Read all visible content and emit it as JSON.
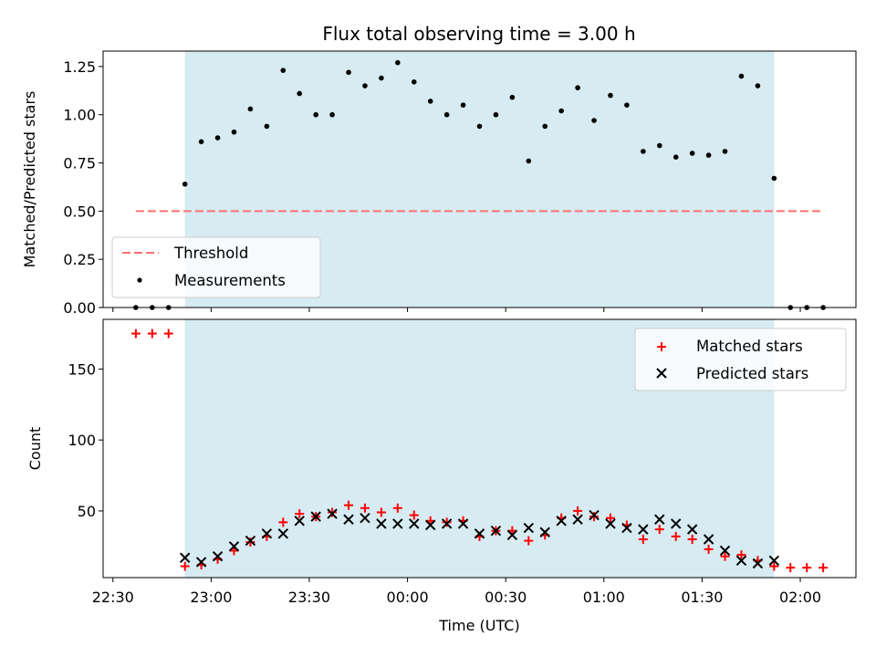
{
  "chart_data": [
    {
      "type": "scatter",
      "title": "Flux total observing time = 3.00 h",
      "xlabel": "",
      "ylabel": "Matched/Predicted stars",
      "ylim": [
        0,
        1.33
      ],
      "yticks": [
        0.0,
        0.25,
        0.5,
        0.75,
        1.0,
        1.25
      ],
      "ytick_labels": [
        "0.00",
        "0.25",
        "0.50",
        "0.75",
        "1.00",
        "1.25"
      ],
      "grid": false,
      "legend_position": "lower-left",
      "observing_window": {
        "start": "22:52",
        "end": "01:52",
        "color": "#add8e6"
      },
      "threshold": {
        "name": "Threshold",
        "value": 0.5,
        "x_start": "22:37",
        "x_end": "02:07",
        "color": "#ff7070",
        "style": "dashed"
      },
      "series": [
        {
          "name": "Measurements",
          "color": "#000000",
          "x": [
            "22:37",
            "22:42",
            "22:47",
            "22:52",
            "22:57",
            "23:02",
            "23:07",
            "23:12",
            "23:17",
            "23:22",
            "23:27",
            "23:32",
            "23:37",
            "23:42",
            "23:47",
            "23:52",
            "23:57",
            "00:02",
            "00:07",
            "00:12",
            "00:17",
            "00:22",
            "00:27",
            "00:32",
            "00:37",
            "00:42",
            "00:47",
            "00:52",
            "00:57",
            "01:02",
            "01:07",
            "01:12",
            "01:17",
            "01:22",
            "01:27",
            "01:32",
            "01:37",
            "01:42",
            "01:47",
            "01:52",
            "01:57",
            "02:02",
            "02:07"
          ],
          "y": [
            0,
            0,
            0,
            0.64,
            0.86,
            0.88,
            0.91,
            1.03,
            0.94,
            1.23,
            1.11,
            1.0,
            1.0,
            1.22,
            1.15,
            1.19,
            1.27,
            1.17,
            1.07,
            1.0,
            1.05,
            0.94,
            1.0,
            1.09,
            0.76,
            0.94,
            1.02,
            1.14,
            0.97,
            1.1,
            1.05,
            0.81,
            0.84,
            0.78,
            0.8,
            0.79,
            0.81,
            1.2,
            1.15,
            0.67,
            0,
            0,
            0
          ]
        }
      ]
    },
    {
      "type": "scatter",
      "title": "",
      "xlabel": "Time (UTC)",
      "ylabel": "Count",
      "ylim": [
        3,
        185
      ],
      "yticks": [
        50,
        100,
        150
      ],
      "ytick_labels": [
        "50",
        "100",
        "150"
      ],
      "xlim": [
        "22:27",
        "02:17"
      ],
      "xticks": [
        "22:30",
        "23:00",
        "23:30",
        "00:00",
        "00:30",
        "01:00",
        "01:30",
        "02:00"
      ],
      "grid": false,
      "legend_position": "top-right",
      "observing_window": {
        "start": "22:52",
        "end": "01:52",
        "color": "#add8e6"
      },
      "series": [
        {
          "name": "Matched stars",
          "marker": "+",
          "color": "#ff0000",
          "x": [
            "22:37",
            "22:42",
            "22:47",
            "22:52",
            "22:57",
            "23:02",
            "23:07",
            "23:12",
            "23:17",
            "23:22",
            "23:27",
            "23:32",
            "23:37",
            "23:42",
            "23:47",
            "23:52",
            "23:57",
            "00:02",
            "00:07",
            "00:12",
            "00:17",
            "00:22",
            "00:27",
            "00:32",
            "00:37",
            "00:42",
            "00:47",
            "00:52",
            "00:57",
            "01:02",
            "01:07",
            "01:12",
            "01:17",
            "01:22",
            "01:27",
            "01:32",
            "01:37",
            "01:42",
            "01:47",
            "01:52",
            "01:57",
            "02:02",
            "02:07"
          ],
          "y": [
            175,
            175,
            175,
            11,
            12,
            16,
            22,
            28,
            32,
            42,
            48,
            46,
            49,
            54,
            52,
            49,
            52,
            47,
            43,
            42,
            43,
            32,
            36,
            36,
            29,
            33,
            45,
            50,
            46,
            45,
            40,
            30,
            37,
            32,
            30,
            23,
            18,
            19,
            15,
            11,
            10,
            10,
            10
          ]
        },
        {
          "name": "Predicted stars",
          "marker": "x",
          "color": "#000000",
          "x": [
            "22:52",
            "22:57",
            "23:02",
            "23:07",
            "23:12",
            "23:17",
            "23:22",
            "23:27",
            "23:32",
            "23:37",
            "23:42",
            "23:47",
            "23:52",
            "23:57",
            "00:02",
            "00:07",
            "00:12",
            "00:17",
            "00:22",
            "00:27",
            "00:32",
            "00:37",
            "00:42",
            "00:47",
            "00:52",
            "00:57",
            "01:02",
            "01:07",
            "01:12",
            "01:17",
            "01:22",
            "01:27",
            "01:32",
            "01:37",
            "01:42",
            "01:47",
            "01:52"
          ],
          "y": [
            17,
            14,
            18,
            25,
            29,
            34,
            34,
            43,
            46,
            48,
            44,
            45,
            41,
            41,
            41,
            40,
            41,
            41,
            34,
            36,
            33,
            38,
            35,
            43,
            44,
            47,
            41,
            38,
            37,
            44,
            41,
            37,
            30,
            22,
            15,
            13,
            15
          ]
        }
      ]
    }
  ]
}
